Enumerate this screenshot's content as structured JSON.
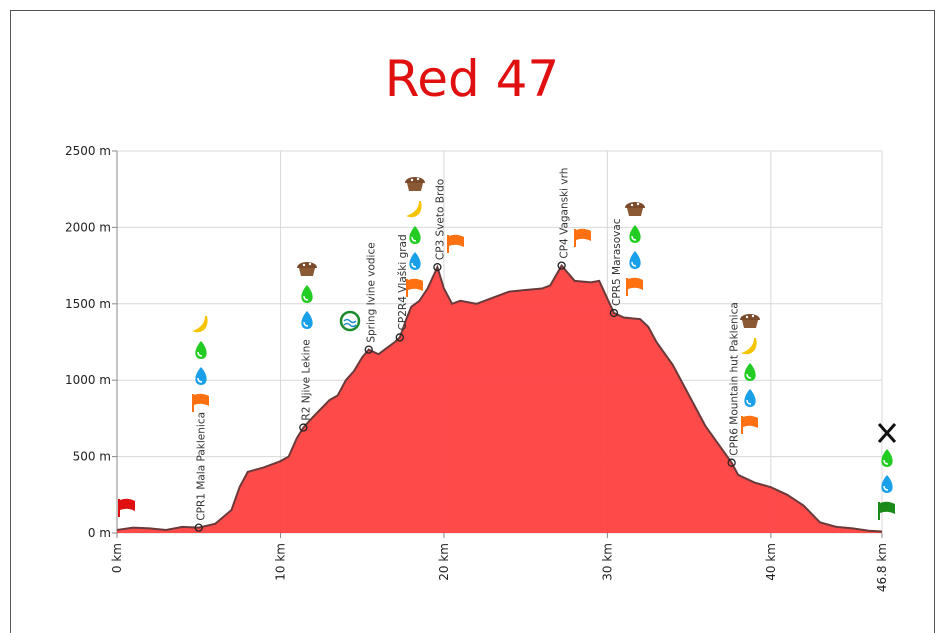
{
  "chart_data": {
    "type": "area",
    "title": "Red 47",
    "x": [
      0,
      1,
      2,
      3,
      4,
      5,
      6,
      7,
      7.5,
      8,
      9,
      10,
      10.5,
      11,
      11.4,
      12,
      13,
      13.5,
      14,
      14.5,
      15,
      15.4,
      16,
      16.5,
      17,
      17.3,
      17.7,
      18,
      18.5,
      19,
      19.6,
      20,
      20.5,
      21,
      22,
      23,
      24,
      25,
      26,
      26.5,
      27.2,
      28,
      29,
      29.5,
      30.4,
      31,
      32,
      32.5,
      33,
      34,
      35,
      36,
      37,
      37.6,
      38,
      39,
      40,
      41,
      42,
      43,
      44,
      45,
      46,
      46.8
    ],
    "series": [
      {
        "color": "#ff4040",
        "values": [
          20,
          35,
          30,
          20,
          40,
          35,
          60,
          150,
          300,
          400,
          430,
          470,
          500,
          620,
          690,
          760,
          870,
          900,
          1000,
          1060,
          1150,
          1200,
          1170,
          1210,
          1250,
          1280,
          1400,
          1480,
          1520,
          1600,
          1740,
          1600,
          1500,
          1520,
          1500,
          1540,
          1580,
          1590,
          1600,
          1620,
          1750,
          1650,
          1640,
          1650,
          1440,
          1410,
          1400,
          1350,
          1250,
          1100,
          900,
          700,
          550,
          460,
          380,
          330,
          300,
          250,
          180,
          70,
          40,
          30,
          15,
          10
        ]
      }
    ],
    "checkpoints": [
      {
        "name": "CPR1 Mala Paklenica",
        "km": 5.0,
        "elevation": 35
      },
      {
        "name": "R2 Njive Lekine",
        "km": 11.4,
        "elevation": 690
      },
      {
        "name": "Spring Ivine vodice",
        "km": 15.4,
        "elevation": 1200
      },
      {
        "name": "CP2R4 Vlaški grad",
        "km": 17.3,
        "elevation": 1280
      },
      {
        "name": "CP3 Sveto Brdo",
        "km": 19.6,
        "elevation": 1740
      },
      {
        "name": "CP4 Vaganski vrh",
        "km": 27.2,
        "elevation": 1750
      },
      {
        "name": "CPR5 Marasovac",
        "km": 30.4,
        "elevation": 1440
      },
      {
        "name": "CPR6 Mountain hut Paklenica",
        "km": 37.6,
        "elevation": 460
      }
    ],
    "xlim": [
      0,
      46.8
    ],
    "ylim": [
      0,
      2500
    ],
    "xticks": [
      {
        "value": 0,
        "label": "0 km"
      },
      {
        "value": 10,
        "label": "10 km"
      },
      {
        "value": 20,
        "label": "20 km"
      },
      {
        "value": 30,
        "label": "30 km"
      },
      {
        "value": 40,
        "label": "40 km"
      },
      {
        "value": 46.8,
        "label": "46.8 km"
      }
    ],
    "yticks": [
      {
        "value": 0,
        "label": "0 m"
      },
      {
        "value": 500,
        "label": "500 m"
      },
      {
        "value": 1000,
        "label": "1000 m"
      },
      {
        "value": 1500,
        "label": "1500 m"
      },
      {
        "value": 2000,
        "label": "2000 m"
      },
      {
        "value": 2500,
        "label": "2500 m"
      }
    ],
    "grid": true
  }
}
